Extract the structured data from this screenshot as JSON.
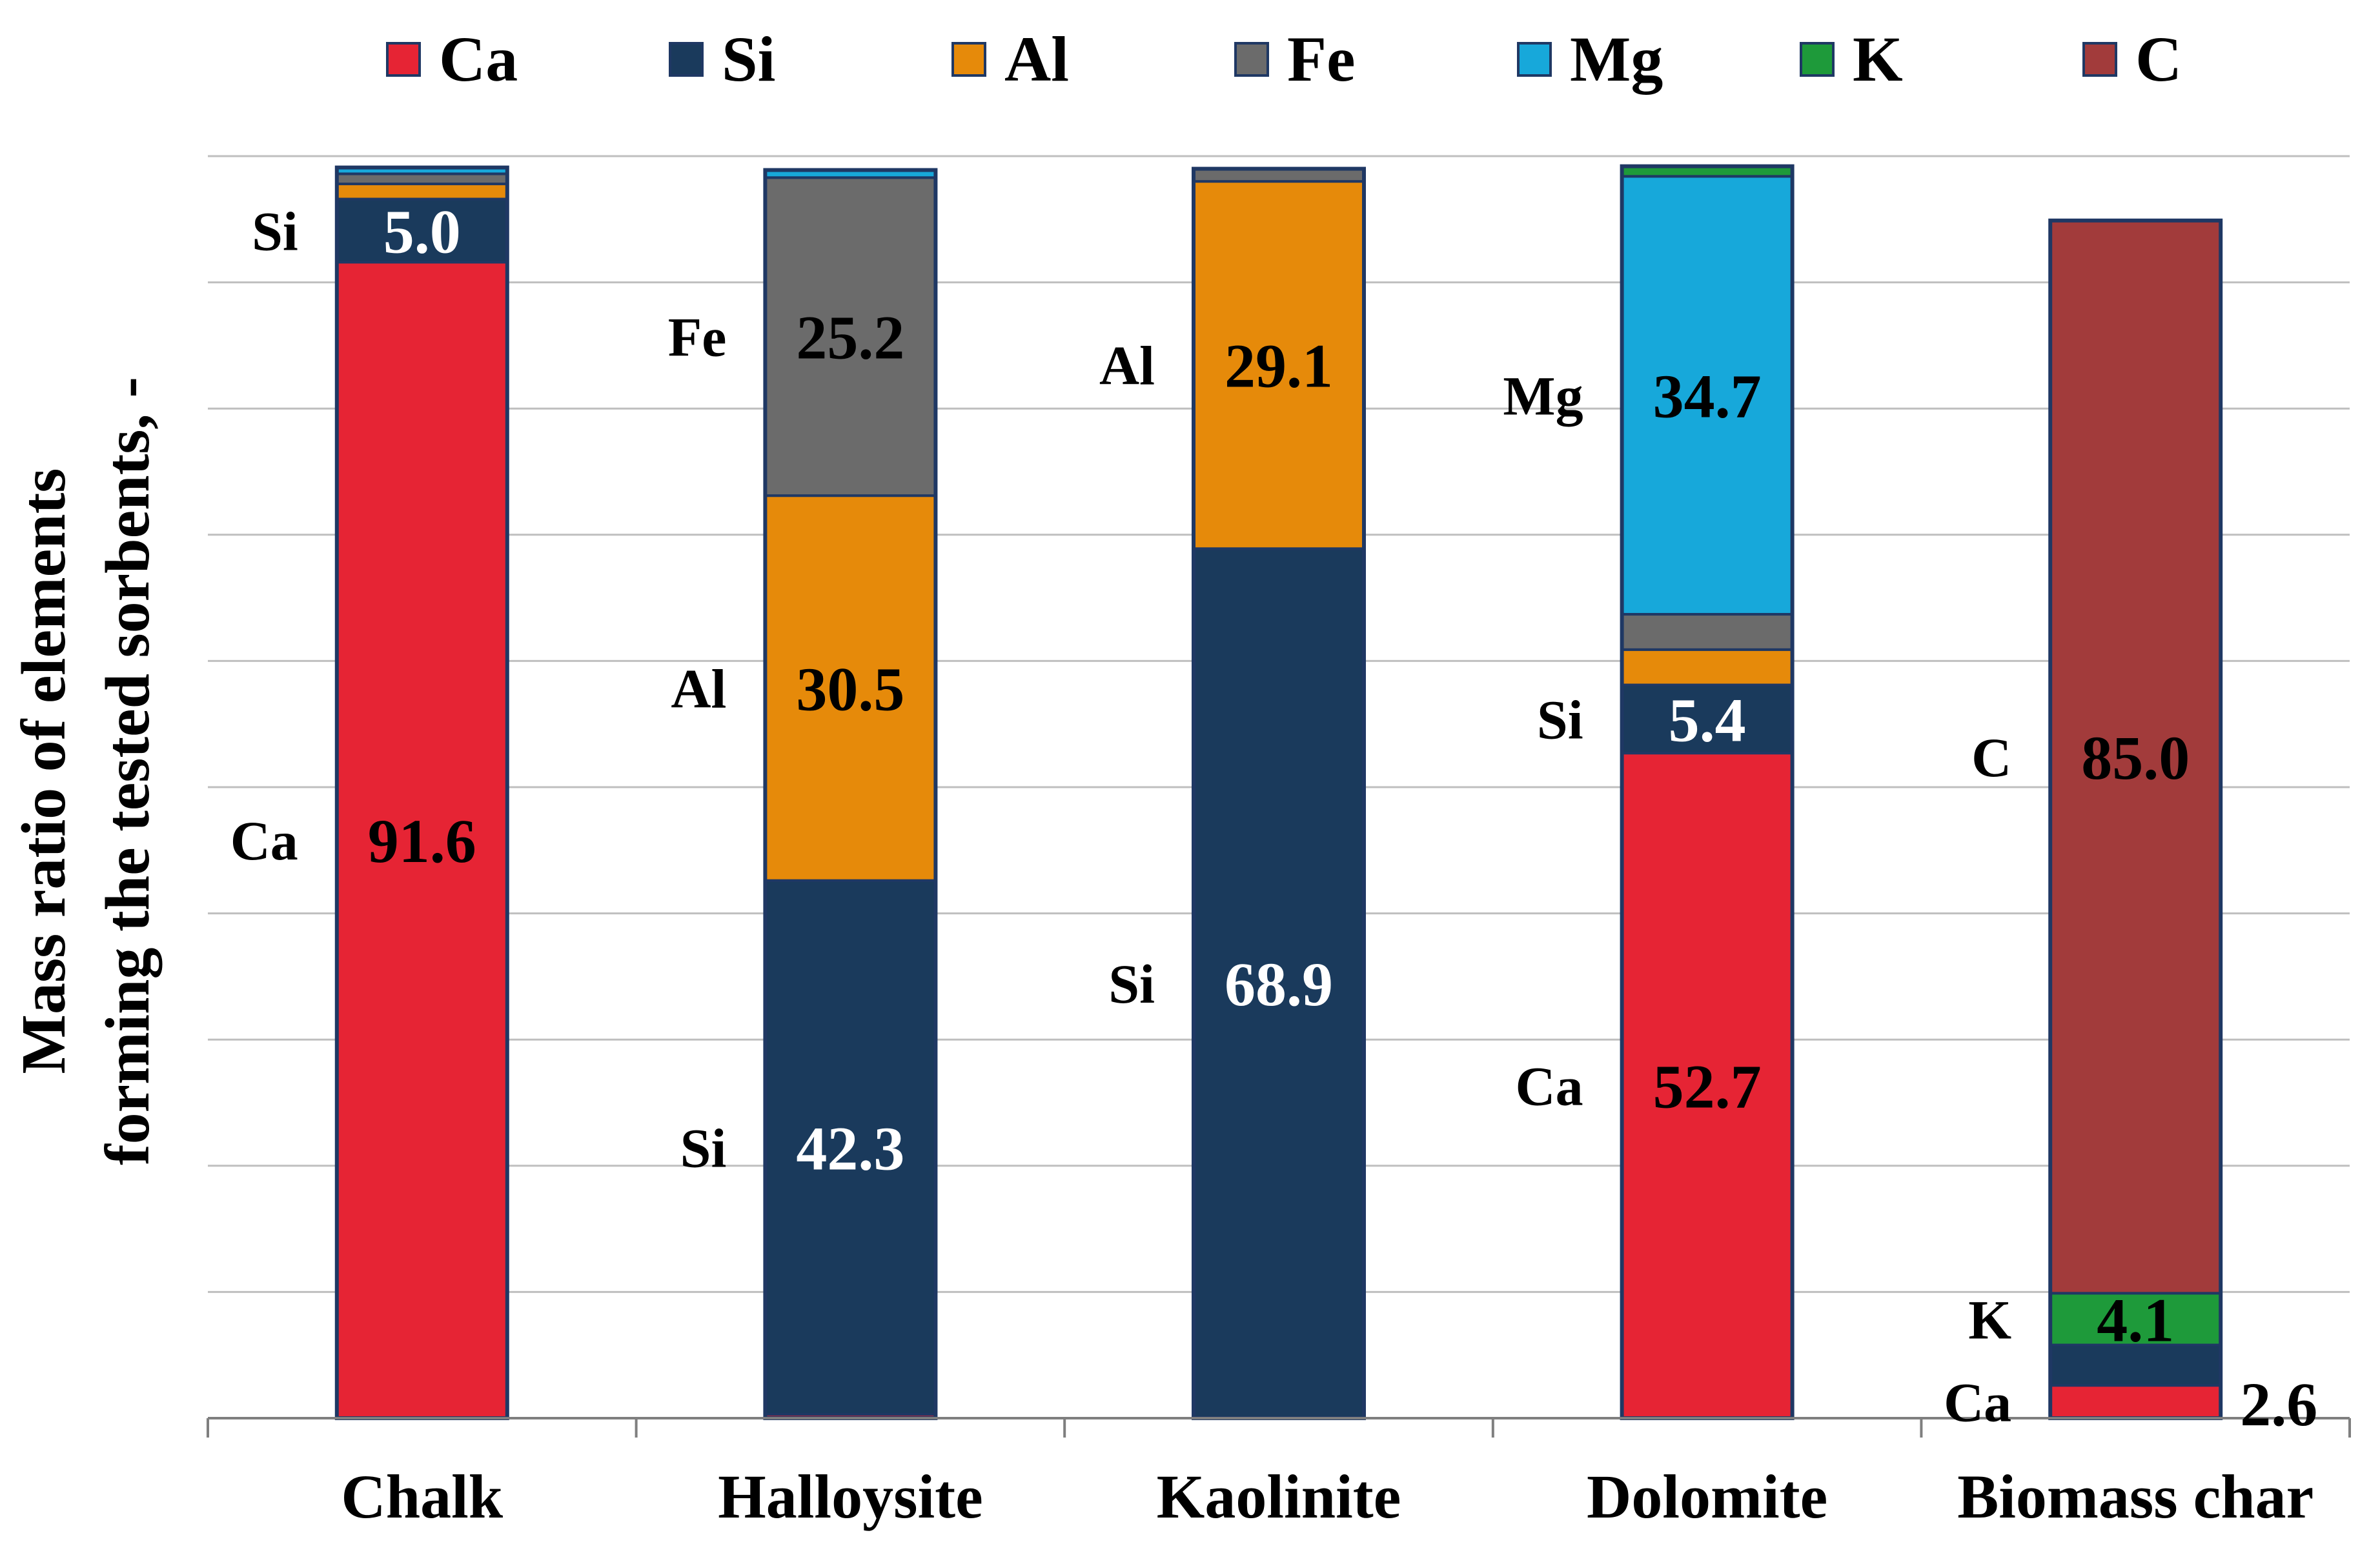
{
  "chart_data": {
    "type": "bar",
    "stacked": true,
    "title": "",
    "xlabel": "",
    "ylabel_lines": [
      "Mass ratio of elements",
      "forming the tested sorbents, -"
    ],
    "ylim": [
      0,
      100
    ],
    "grid": true,
    "legend_position": "top",
    "categories": [
      "Chalk",
      "Halloysite",
      "Kaolinite",
      "Dolomite",
      "Biomass char"
    ],
    "series": [
      {
        "name": "Ca",
        "color": "#E62434",
        "values": [
          91.6,
          0.3,
          0,
          52.7,
          2.6
        ]
      },
      {
        "name": "Si",
        "color": "#1A3A5C",
        "values": [
          5.0,
          42.3,
          68.9,
          5.4,
          3.2
        ]
      },
      {
        "name": "Al",
        "color": "#E68A0A",
        "values": [
          1.2,
          30.5,
          29.1,
          2.8,
          0
        ]
      },
      {
        "name": "Fe",
        "color": "#6B6B6B",
        "values": [
          0.8,
          25.2,
          1.0,
          2.8,
          0
        ]
      },
      {
        "name": "Mg",
        "color": "#17A8DA",
        "values": [
          0.5,
          0.6,
          0,
          34.7,
          0
        ]
      },
      {
        "name": "K",
        "color": "#1E9A3A",
        "values": [
          0,
          0,
          0,
          0.8,
          4.1
        ]
      },
      {
        "name": "C",
        "color": "#A23B3B",
        "values": [
          0,
          0,
          0,
          0,
          85.0
        ]
      }
    ],
    "value_labels": [
      {
        "category": "Chalk",
        "series": "Si",
        "text": "5.0",
        "side_label": "Si",
        "color": "#ffffff"
      },
      {
        "category": "Chalk",
        "series": "Ca",
        "text": "91.6",
        "side_label": "Ca",
        "color": "#000000"
      },
      {
        "category": "Halloysite",
        "series": "Fe",
        "text": "25.2",
        "side_label": "Fe",
        "color": "#000000"
      },
      {
        "category": "Halloysite",
        "series": "Al",
        "text": "30.5",
        "side_label": "Al",
        "color": "#000000"
      },
      {
        "category": "Halloysite",
        "series": "Si",
        "text": "42.3",
        "side_label": "Si",
        "color": "#ffffff"
      },
      {
        "category": "Kaolinite",
        "series": "Al",
        "text": "29.1",
        "side_label": "Al",
        "color": "#000000"
      },
      {
        "category": "Kaolinite",
        "series": "Si",
        "text": "68.9",
        "side_label": "Si",
        "color": "#ffffff"
      },
      {
        "category": "Dolomite",
        "series": "Mg",
        "text": "34.7",
        "side_label": "Mg",
        "color": "#000000"
      },
      {
        "category": "Dolomite",
        "series": "Si",
        "text": "5.4",
        "side_label": "Si",
        "color": "#ffffff"
      },
      {
        "category": "Dolomite",
        "series": "Ca",
        "text": "52.7",
        "side_label": "Ca",
        "color": "#000000"
      },
      {
        "category": "Biomass char",
        "series": "C",
        "text": "85.0",
        "side_label": "C",
        "color": "#000000"
      },
      {
        "category": "Biomass char",
        "series": "K",
        "text": "4.1",
        "side_label": "K",
        "color": "#000000"
      },
      {
        "category": "Biomass char",
        "series": "Ca",
        "text": "2.6",
        "side_label": "Ca",
        "color": "#000000",
        "outside_right": true
      }
    ]
  }
}
